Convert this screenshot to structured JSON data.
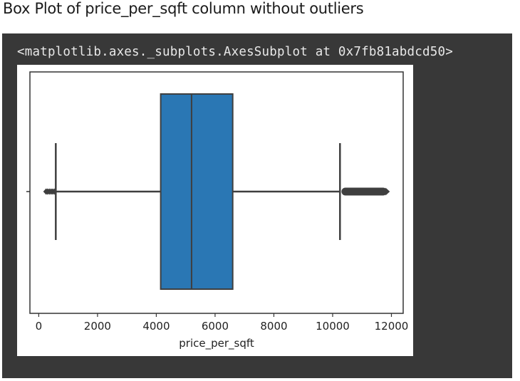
{
  "page": {
    "heading": "Box Plot of price_per_sqft column without outliers",
    "output_text": "<matplotlib.axes._subplots.AxesSubplot at 0x7fb81abdcd50>"
  },
  "chart_data": {
    "type": "box",
    "orientation": "horizontal",
    "xlabel": "price_per_sqft",
    "xlim": [
      -300,
      12400
    ],
    "xticks": [
      0,
      2000,
      4000,
      6000,
      8000,
      10000,
      12000
    ],
    "xtick_labels": [
      "0",
      "2000",
      "4000",
      "6000",
      "8000",
      "10000",
      "12000"
    ],
    "box": {
      "whisker_low": 580,
      "q1": 4150,
      "median": 5200,
      "q3": 6600,
      "whisker_high": 10250
    },
    "outliers": {
      "low": [
        250,
        300,
        360,
        420,
        480,
        540
      ],
      "high": {
        "min": 10300,
        "max": 11850
      }
    },
    "box_color": "#2a77b4",
    "line_color": "#3f3f3f"
  }
}
